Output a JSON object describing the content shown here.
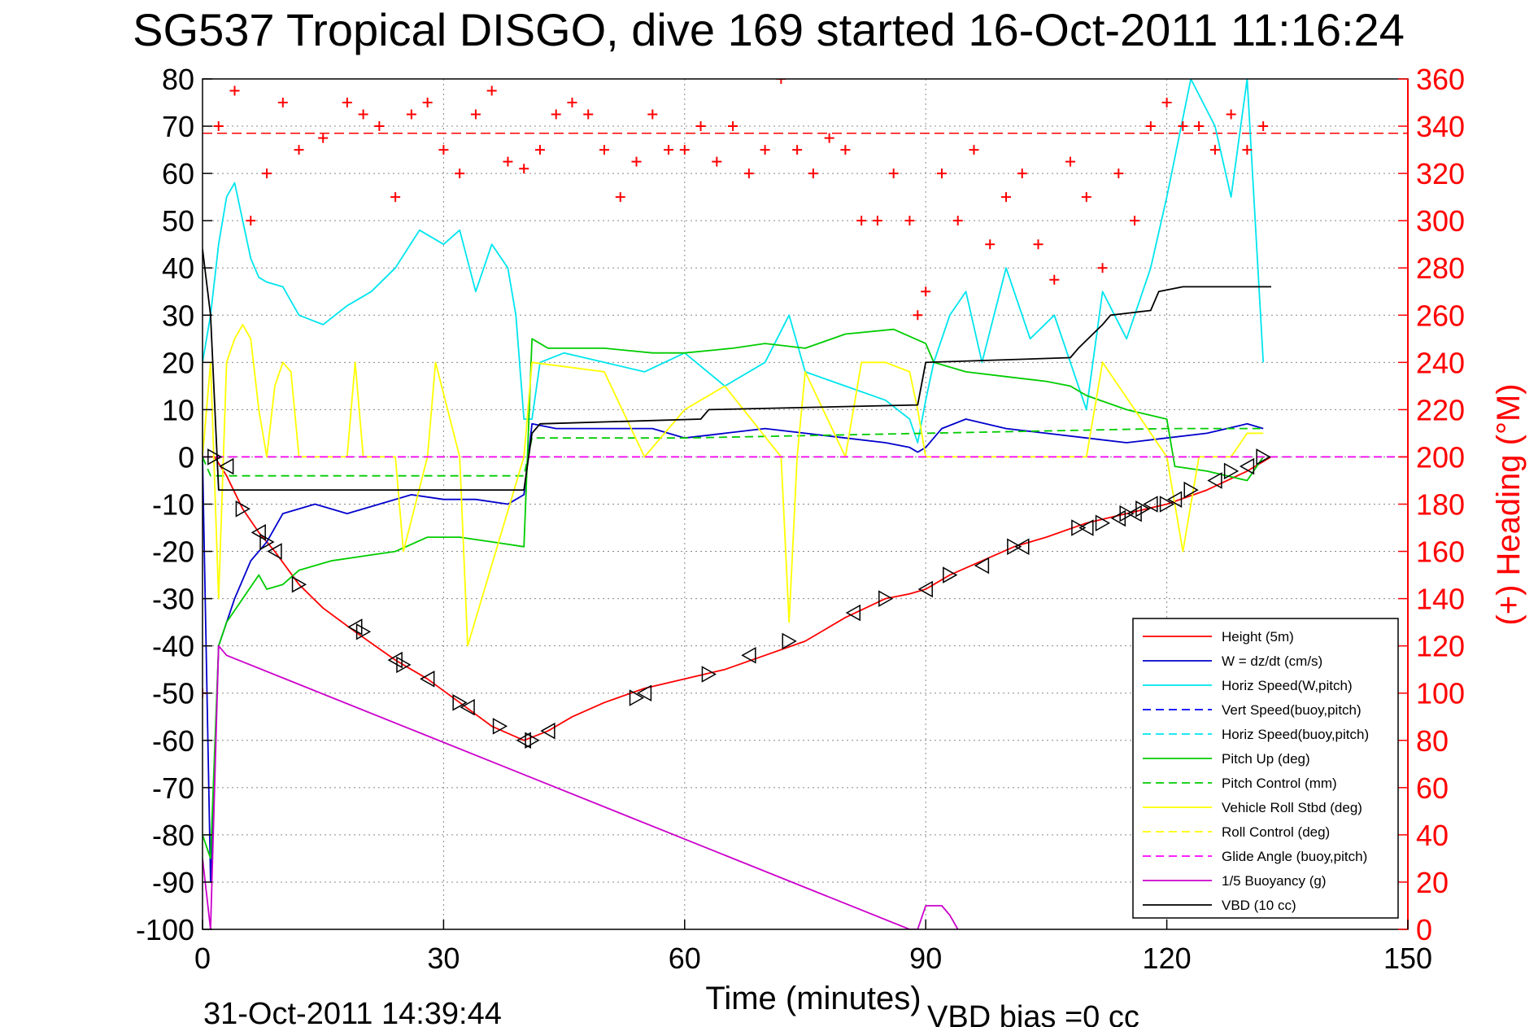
{
  "chart_data": {
    "type": "line",
    "title": "SG537 Tropical DISGO, dive 169 started 16-Oct-2011 11:16:24",
    "xlabel": "Time (minutes)",
    "ylabel": "",
    "y2label": "(+) Heading (°M)",
    "xlim": [
      0,
      150
    ],
    "ylim": [
      -100,
      80
    ],
    "y2lim": [
      0,
      360
    ],
    "xticks": [
      0,
      30,
      60,
      90,
      120,
      150
    ],
    "yticks": [
      80,
      70,
      60,
      50,
      40,
      30,
      20,
      10,
      0,
      -10,
      -20,
      -30,
      -40,
      -50,
      -60,
      -70,
      -80,
      -90,
      -100
    ],
    "y2ticks": [
      360,
      340,
      320,
      300,
      280,
      260,
      240,
      220,
      200,
      180,
      160,
      140,
      120,
      100,
      80,
      60,
      40,
      20,
      0
    ],
    "grid": true,
    "legend_position": "bottom-right",
    "footer_left": "31-Oct-2011 14:39:44",
    "footer_right": "VBD bias =0 cc",
    "heading_reference": 337,
    "series": [
      {
        "name": "Height (5m)",
        "color": "#ff0000",
        "style": "solid",
        "axis": "left",
        "x": [
          0,
          1.5,
          3,
          5,
          7,
          9,
          12,
          15,
          19,
          24,
          28,
          32,
          36,
          40,
          43,
          46,
          50,
          55,
          60,
          65,
          70,
          75,
          80,
          85,
          88,
          90,
          93,
          97,
          101,
          105,
          110,
          115,
          120,
          125,
          130,
          133
        ],
        "y": [
          0,
          0,
          -4,
          -11,
          -16,
          -20,
          -27,
          -32,
          -37,
          -43,
          -47,
          -52,
          -57,
          -60,
          -58,
          -55,
          -52,
          -49,
          -47,
          -45,
          -42,
          -39,
          -34,
          -30,
          -29,
          -28,
          -25,
          -22,
          -19,
          -17,
          -14,
          -12,
          -10,
          -7,
          -3,
          0
        ]
      },
      {
        "name": "W = dz/dt (cm/s)",
        "color": "#0000cc",
        "style": "solid",
        "axis": "left",
        "x": [
          0,
          1,
          2,
          4,
          6,
          8,
          10,
          14,
          18,
          22,
          26,
          30,
          34,
          38,
          40,
          41,
          44,
          50,
          56,
          60,
          65,
          70,
          75,
          80,
          85,
          88,
          89,
          90,
          92,
          95,
          100,
          105,
          110,
          115,
          120,
          125,
          130,
          132
        ],
        "y": [
          0,
          -90,
          -40,
          -30,
          -22,
          -18,
          -12,
          -10,
          -12,
          -10,
          -8,
          -9,
          -9,
          -10,
          -8,
          7,
          6,
          6,
          6,
          4,
          5,
          6,
          5,
          4,
          3,
          2,
          1,
          2,
          6,
          8,
          6,
          5,
          4,
          3,
          4,
          5,
          7,
          6
        ]
      },
      {
        "name": "Horiz Speed(W,pitch)",
        "color": "#00e5ee",
        "style": "solid",
        "axis": "left",
        "x": [
          0,
          1,
          2,
          3,
          4,
          5,
          6,
          7,
          8,
          10,
          12,
          15,
          18,
          21,
          24,
          27,
          30,
          32,
          34,
          36,
          38,
          39,
          40,
          41,
          42,
          45,
          50,
          55,
          60,
          65,
          70,
          73,
          75,
          80,
          85,
          88,
          89,
          90,
          91,
          93,
          95,
          97,
          100,
          103,
          106,
          108,
          110,
          112,
          115,
          118,
          120,
          123,
          126,
          128,
          130,
          132
        ],
        "y": [
          20,
          30,
          45,
          55,
          58,
          50,
          42,
          38,
          37,
          36,
          30,
          28,
          32,
          35,
          40,
          48,
          45,
          48,
          35,
          45,
          40,
          30,
          8,
          8,
          20,
          22,
          20,
          18,
          22,
          15,
          20,
          30,
          18,
          15,
          12,
          8,
          3,
          12,
          20,
          30,
          35,
          20,
          40,
          25,
          30,
          20,
          10,
          35,
          25,
          40,
          55,
          80,
          70,
          55,
          80,
          20
        ]
      },
      {
        "name": "Vert Speed(buoy,pitch)",
        "color": "#0000ff",
        "style": "dashed",
        "axis": "left",
        "x": [
          0,
          150
        ],
        "y": [
          0,
          0
        ]
      },
      {
        "name": "Horiz Speed(buoy,pitch)",
        "color": "#00e5ee",
        "style": "dashed",
        "axis": "left",
        "x": [
          0,
          150
        ],
        "y": [
          0,
          0
        ]
      },
      {
        "name": "Pitch Up (deg)",
        "color": "#00cc00",
        "style": "solid",
        "axis": "left",
        "x": [
          0,
          1,
          2,
          3,
          5,
          7,
          8,
          10,
          12,
          16,
          20,
          24,
          28,
          32,
          36,
          40,
          41,
          43,
          50,
          56,
          60,
          66,
          70,
          75,
          80,
          86,
          90,
          91,
          95,
          100,
          105,
          108,
          110,
          115,
          120,
          121,
          125,
          130,
          132
        ],
        "y": [
          -80,
          -85,
          -40,
          -35,
          -30,
          -25,
          -28,
          -27,
          -24,
          -22,
          -21,
          -20,
          -17,
          -17,
          -18,
          -19,
          25,
          23,
          23,
          22,
          22,
          23,
          24,
          23,
          26,
          27,
          24,
          20,
          18,
          17,
          16,
          15,
          13,
          10,
          8,
          -2,
          -3,
          -5,
          0
        ]
      },
      {
        "name": "Pitch Control (mm)",
        "color": "#00cc00",
        "style": "dashed",
        "axis": "left",
        "x": [
          0,
          1,
          2,
          40,
          41,
          60,
          90,
          120,
          132
        ],
        "y": [
          0,
          -4,
          -4,
          -4,
          4,
          4,
          5,
          6,
          6
        ]
      },
      {
        "name": "Vehicle Roll Stbd (deg)",
        "color": "#ffff00",
        "style": "solid",
        "axis": "left",
        "x": [
          0,
          1,
          2,
          3,
          4,
          5,
          6,
          7,
          8,
          9,
          10,
          11,
          12,
          18,
          19,
          20,
          24,
          25,
          28,
          29,
          32,
          33,
          40,
          41,
          50,
          55,
          60,
          65,
          72,
          73,
          74,
          75,
          80,
          82,
          85,
          88,
          89,
          90,
          100,
          110,
          112,
          120,
          122,
          124,
          128,
          130,
          132
        ],
        "y": [
          0,
          20,
          -30,
          20,
          25,
          28,
          25,
          10,
          0,
          15,
          20,
          18,
          0,
          0,
          20,
          0,
          0,
          -20,
          0,
          20,
          0,
          -40,
          0,
          20,
          18,
          0,
          10,
          15,
          0,
          -35,
          0,
          18,
          0,
          20,
          20,
          18,
          10,
          0,
          0,
          0,
          20,
          0,
          -20,
          0,
          0,
          5,
          5
        ]
      },
      {
        "name": "Roll Control (deg)",
        "color": "#ffff00",
        "style": "dashed",
        "axis": "left",
        "x": [
          0,
          150
        ],
        "y": [
          0,
          0
        ]
      },
      {
        "name": "Glide Angle (buoy,pitch)",
        "color": "#ff00ff",
        "style": "dashed",
        "axis": "left",
        "x": [
          0,
          150
        ],
        "y": [
          0,
          0
        ]
      },
      {
        "name": "1/5 Buoyancy (g)",
        "color": "#cc00cc",
        "style": "solid",
        "axis": "left",
        "x": [
          0,
          1,
          2,
          3,
          88,
          89,
          90,
          92,
          93,
          94
        ],
        "y": [
          -85,
          -100,
          -40,
          -42,
          -100,
          -100,
          -95,
          -95,
          -97,
          -100
        ]
      },
      {
        "name": "VBD (10 cc)",
        "color": "#000000",
        "style": "solid",
        "axis": "left",
        "x": [
          0,
          1,
          2,
          3,
          40,
          41,
          42,
          62,
          63,
          89,
          90,
          108,
          109,
          112,
          113,
          118,
          119,
          122,
          133
        ],
        "y": [
          44,
          30,
          -7,
          -7,
          -7,
          5,
          7,
          8,
          10,
          11,
          20,
          21,
          23,
          28,
          30,
          31,
          35,
          36,
          36
        ]
      },
      {
        "name": "Heading",
        "color": "#ff0000",
        "style": "markers",
        "axis": "right",
        "x": [
          0,
          2,
          4,
          6,
          8,
          10,
          12,
          15,
          18,
          20,
          22,
          24,
          26,
          28,
          30,
          32,
          34,
          36,
          38,
          40,
          42,
          44,
          46,
          48,
          50,
          52,
          54,
          56,
          58,
          60,
          62,
          64,
          66,
          68,
          70,
          72,
          74,
          76,
          78,
          80,
          82,
          84,
          86,
          88,
          89,
          90,
          92,
          94,
          96,
          98,
          100,
          102,
          104,
          106,
          108,
          110,
          112,
          114,
          116,
          118,
          120,
          122,
          124,
          126,
          128,
          130,
          132
        ],
        "y": [
          100,
          340,
          355,
          300,
          320,
          350,
          330,
          335,
          350,
          345,
          340,
          310,
          345,
          350,
          330,
          320,
          345,
          355,
          325,
          322,
          330,
          345,
          350,
          345,
          330,
          310,
          325,
          345,
          330,
          330,
          340,
          325,
          340,
          320,
          330,
          360,
          330,
          320,
          335,
          330,
          300,
          300,
          320,
          300,
          260,
          270,
          320,
          300,
          330,
          290,
          310,
          320,
          290,
          275,
          325,
          310,
          280,
          320,
          300,
          340,
          350,
          340,
          340,
          330,
          345,
          330,
          340
        ]
      }
    ],
    "markers": {
      "color": "#000000",
      "shape": "triangle",
      "x": [
        1.5,
        3,
        5,
        7,
        8,
        9,
        12,
        19,
        20,
        24,
        25,
        28,
        32,
        33,
        37,
        40,
        41,
        43,
        54,
        55,
        63,
        68,
        73,
        81,
        85,
        90,
        93,
        97,
        101,
        102,
        109,
        110,
        112,
        114,
        115,
        116,
        117,
        118,
        120,
        121,
        123,
        126,
        128,
        130,
        132
      ],
      "y": [
        0,
        -2,
        -11,
        -16,
        -18,
        -20,
        -27,
        -36,
        -37,
        -43,
        -44,
        -47,
        -52,
        -53,
        -57,
        -60,
        -60,
        -58,
        -51,
        -50,
        -46,
        -42,
        -39,
        -33,
        -30,
        -28,
        -25,
        -23,
        -19,
        -19,
        -15,
        -15,
        -14,
        -13,
        -12,
        -12,
        -11,
        -10,
        -10,
        -9,
        -7,
        -5,
        -3,
        -2,
        0
      ]
    }
  }
}
